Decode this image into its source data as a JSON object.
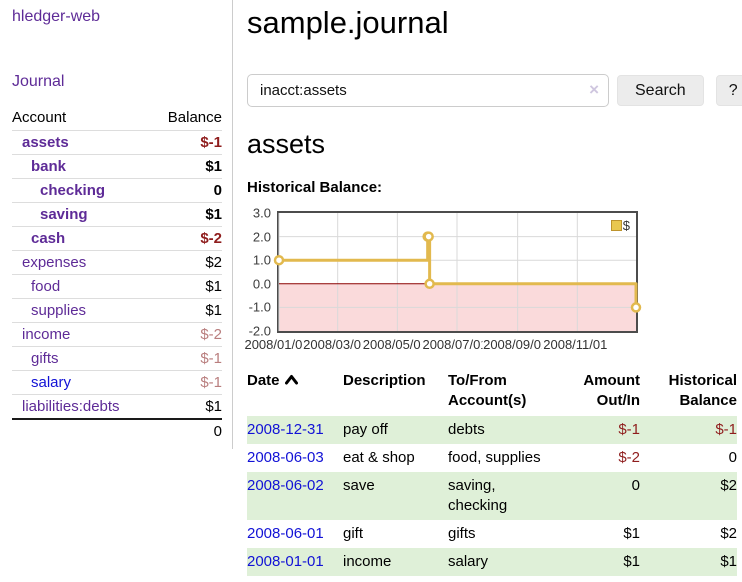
{
  "sidebar": {
    "brand": "hledger-web",
    "journal_link": "Journal",
    "accounts": {
      "col_account": "Account",
      "col_balance": "Balance",
      "rows": [
        {
          "name": "assets",
          "balance": "$-1",
          "indent": 1,
          "bold": true,
          "neg": "strong",
          "link": "purple"
        },
        {
          "name": "bank",
          "balance": "$1",
          "indent": 2,
          "bold": true,
          "neg": null,
          "link": "purple"
        },
        {
          "name": "checking",
          "balance": "0",
          "indent": 3,
          "bold": true,
          "neg": null,
          "link": "purple"
        },
        {
          "name": "saving",
          "balance": "$1",
          "indent": 3,
          "bold": true,
          "neg": null,
          "link": "purple"
        },
        {
          "name": "cash",
          "balance": "$-2",
          "indent": 2,
          "bold": true,
          "neg": "strong",
          "link": "purple"
        },
        {
          "name": "expenses",
          "balance": "$2",
          "indent": 1,
          "bold": false,
          "neg": null,
          "link": "purple"
        },
        {
          "name": "food",
          "balance": "$1",
          "indent": 2,
          "bold": false,
          "neg": null,
          "link": "purple"
        },
        {
          "name": "supplies",
          "balance": "$1",
          "indent": 2,
          "bold": false,
          "neg": null,
          "link": "purple"
        },
        {
          "name": "income",
          "balance": "$-2",
          "indent": 1,
          "bold": false,
          "neg": "soft",
          "link": "purple"
        },
        {
          "name": "gifts",
          "balance": "$-1",
          "indent": 2,
          "bold": false,
          "neg": "soft",
          "link": "purple"
        },
        {
          "name": "salary",
          "balance": "$-1",
          "indent": 2,
          "bold": false,
          "neg": "soft",
          "link": "blue"
        },
        {
          "name": "liabilities:debts",
          "balance": "$1",
          "indent": 1,
          "bold": false,
          "neg": null,
          "link": "purple"
        }
      ],
      "total": "0"
    }
  },
  "header": {
    "title": "sample.journal"
  },
  "search": {
    "value": "inacct:assets",
    "clear_glyph": "×",
    "button_label": "Search",
    "help_label": "?"
  },
  "register": {
    "heading": "assets",
    "chart_heading": "Historical Balance:",
    "table": {
      "col_date": "Date",
      "col_description": "Description",
      "col_accounts": "To/From Account(s)",
      "col_amount": "Amount Out/In",
      "col_balance": "Historical Balance",
      "rows": [
        {
          "date": "2008-12-31",
          "description": "pay off",
          "accounts": "debts",
          "amount": "$-1",
          "balance": "$-1",
          "amount_neg": true,
          "balance_neg": true
        },
        {
          "date": "2008-06-03",
          "description": "eat & shop",
          "accounts": "food, supplies",
          "amount": "$-2",
          "balance": "0",
          "amount_neg": true,
          "balance_neg": false
        },
        {
          "date": "2008-06-02",
          "description": "save",
          "accounts": "saving, checking",
          "amount": "0",
          "balance": "$2",
          "amount_neg": false,
          "balance_neg": false
        },
        {
          "date": "2008-06-01",
          "description": "gift",
          "accounts": "gifts",
          "amount": "$1",
          "balance": "$2",
          "amount_neg": false,
          "balance_neg": false
        },
        {
          "date": "2008-01-01",
          "description": "income",
          "accounts": "salary",
          "amount": "$1",
          "balance": "$1",
          "amount_neg": false,
          "balance_neg": false
        }
      ]
    }
  },
  "chart_data": {
    "type": "line",
    "title": "Historical Balance",
    "step": true,
    "series": [
      {
        "name": "$",
        "points": [
          [
            "2008-01-01",
            1
          ],
          [
            "2008-06-01",
            2
          ],
          [
            "2008-06-02",
            2
          ],
          [
            "2008-06-03",
            0
          ],
          [
            "2008-12-31",
            -1
          ]
        ],
        "color": "#e2b94e",
        "marker_fill": "#ffffff"
      }
    ],
    "x_range": [
      "2008-01-01",
      "2008-12-31"
    ],
    "x_ticks": [
      "2008/01/01",
      "2008/03/01",
      "2008/05/01",
      "2008/07/01",
      "2008/09/01",
      "2008/11/01"
    ],
    "y_ticks": [
      3.0,
      2.0,
      1.0,
      0.0,
      -1.0,
      -2.0
    ],
    "ylim": [
      -2,
      3
    ],
    "legend": {
      "label": "$",
      "position": "top-right"
    },
    "grid": true,
    "grid_color": "#d9d9d9",
    "zero_line_color": "#8b0000",
    "negative_region_color": "#fadadb",
    "border_color": "#4c4c4c"
  },
  "colors": {
    "link_purple": "#5e2b97",
    "link_blue": "#1212d6",
    "negative_strong": "#8f1d1d",
    "negative_soft": "#b97e7e",
    "row_stripe_green": "#dff0d8",
    "chart_line_gold": "#e2b94e"
  }
}
